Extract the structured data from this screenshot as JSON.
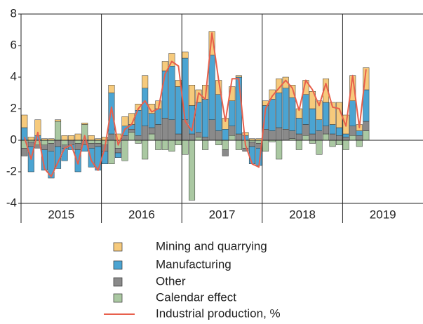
{
  "chart_data": {
    "type": "bar",
    "categories": [
      null,
      null,
      null,
      null,
      null,
      null,
      "2015",
      null,
      null,
      null,
      null,
      null,
      null,
      null,
      null,
      null,
      null,
      null,
      "2016",
      null,
      null,
      null,
      null,
      null,
      null,
      null,
      null,
      null,
      null,
      null,
      "2017",
      null,
      null,
      null,
      null,
      null,
      null,
      null,
      null,
      null,
      null,
      null,
      "2018",
      null,
      null,
      null,
      null,
      null,
      null,
      null,
      null,
      null,
      null,
      null,
      "2019",
      null,
      null,
      null,
      null,
      null
    ],
    "series": [
      {
        "name": "Mining and quarrying",
        "type": "bar",
        "color": "#f6ca7c",
        "values": [
          0.8,
          0.2,
          1.0,
          0.1,
          0.1,
          0.1,
          0.3,
          0.3,
          0.4,
          0.1,
          0.3,
          0.1,
          0.2,
          0.5,
          0.4,
          0.6,
          0.7,
          0.4,
          0.8,
          0.6,
          0.5,
          0.6,
          0.8,
          0.4,
          0.4,
          1.3,
          0.8,
          0.9,
          1.5,
          0.9,
          0.7,
          0.9,
          0.1,
          0.2,
          0.1,
          0.1,
          0.3,
          0.6,
          0.9,
          0.7,
          0.8,
          0.6,
          0.9,
          1.1,
          1.2,
          1.5,
          1.4,
          1.6,
          1.2,
          1.6,
          0.4,
          1.4,
          null,
          null,
          null,
          null,
          null,
          null,
          null,
          null
        ]
      },
      {
        "name": "Manufacturing",
        "type": "bar",
        "color": "#4ba4d2",
        "values": [
          0.8,
          -1.6,
          0.3,
          -1.3,
          -1.7,
          -1.4,
          -0.8,
          -0.3,
          -1.4,
          -0.4,
          -1.2,
          -1.5,
          -0.8,
          2.6,
          -0.3,
          0.6,
          0.3,
          1.6,
          2.4,
          0.9,
          1.0,
          3.0,
          3.4,
          3.0,
          3.9,
          1.8,
          1.9,
          2.4,
          4.1,
          2.3,
          0.7,
          1.6,
          3.6,
          0.3,
          -1.1,
          -1.1,
          1.5,
          2.0,
          2.2,
          2.6,
          2.1,
          1.0,
          1.9,
          1.6,
          0.7,
          1.5,
          0.6,
          0.5,
          0.2,
          1.6,
          0.3,
          2.0,
          null,
          null,
          null,
          null,
          null,
          null,
          null,
          null
        ]
      },
      {
        "name": "Other",
        "type": "bar",
        "color": "#8a8a8a",
        "values": [
          -0.5,
          -0.3,
          -0.2,
          -0.3,
          -0.5,
          -0.4,
          -0.2,
          -0.3,
          -0.4,
          -0.3,
          -0.3,
          -0.2,
          -0.4,
          0.4,
          -0.3,
          0.3,
          0.2,
          0.3,
          0.9,
          0.4,
          1.0,
          1.4,
          1.3,
          0.4,
          1.3,
          0.4,
          0.3,
          0.2,
          1.3,
          0.6,
          -0.4,
          0.6,
          0.4,
          -0.2,
          -0.3,
          -0.3,
          0.7,
          0.6,
          0.8,
          0.7,
          0.5,
          0.4,
          0.7,
          0.4,
          0.6,
          0.5,
          0.4,
          0.3,
          0.2,
          0.6,
          0.3,
          0.6,
          null,
          null,
          null,
          null,
          null,
          null,
          null,
          null
        ]
      },
      {
        "name": "Calendar effect",
        "type": "bar",
        "color": "#aac8a2",
        "values": [
          -0.5,
          -0.1,
          -0.3,
          -0.3,
          -0.2,
          1.2,
          -0.3,
          0.0,
          -0.2,
          1.0,
          -0.2,
          -0.2,
          -0.3,
          -1.5,
          -0.5,
          -1.3,
          0.5,
          -0.2,
          -1.2,
          0.4,
          -0.6,
          -0.6,
          -0.7,
          -0.3,
          -0.9,
          -3.8,
          0.2,
          -0.6,
          0.0,
          -0.3,
          -0.6,
          0.3,
          -0.6,
          -0.5,
          -0.1,
          -0.2,
          -0.7,
          -0.1,
          -1.2,
          0.0,
          0.1,
          -0.6,
          0.3,
          -0.2,
          -0.9,
          0.4,
          -0.4,
          -0.3,
          -0.6,
          0.3,
          -0.4,
          0.6,
          null,
          null,
          null,
          null,
          null,
          null,
          null,
          null
        ]
      },
      {
        "name": "Industrial production, %",
        "type": "line",
        "color": "#e8604c",
        "values": [
          0.2,
          -1.2,
          0.5,
          -1.8,
          -2.3,
          -1.4,
          -0.5,
          -0.3,
          -1.5,
          0.3,
          -1.3,
          -1.9,
          -0.5,
          2.1,
          -0.3,
          0.7,
          1.0,
          2.0,
          2.5,
          1.8,
          2.0,
          4.2,
          5.0,
          4.7,
          1.2,
          0.6,
          3.0,
          2.6,
          6.8,
          3.8,
          1.2,
          3.9,
          3.9,
          -0.3,
          -1.5,
          -1.7,
          2.0,
          2.8,
          3.3,
          3.8,
          3.3,
          1.9,
          3.8,
          3.2,
          2.2,
          3.6,
          2.1,
          2.0,
          0.9,
          4.1,
          0.8,
          4.5,
          null,
          null,
          null,
          null,
          null,
          null,
          null,
          null
        ]
      }
    ],
    "ylim": [
      -4,
      8
    ],
    "yticks": [
      -4,
      -2,
      0,
      2,
      4,
      6,
      8
    ],
    "grid": false
  }
}
